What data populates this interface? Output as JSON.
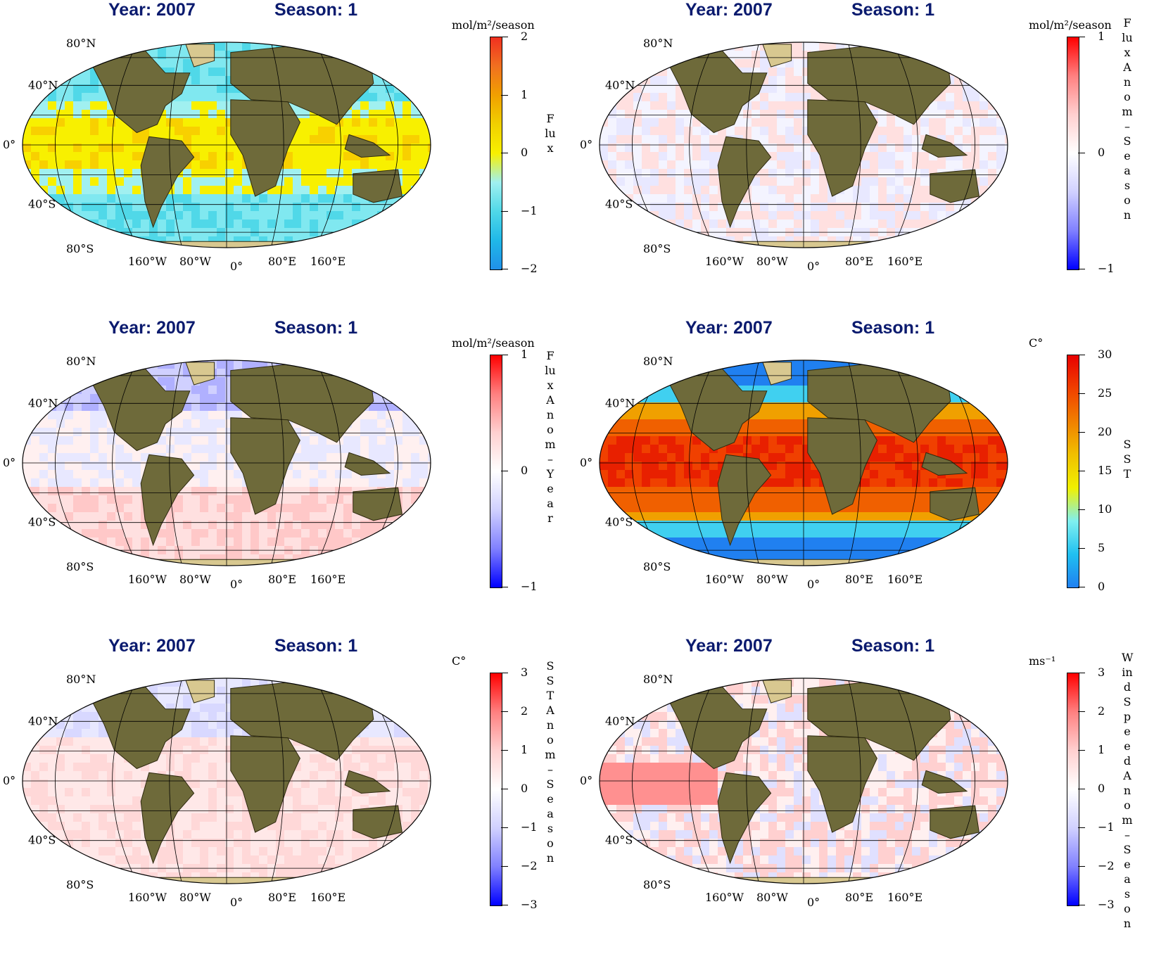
{
  "panels": [
    {
      "year_title": "Year: 2007",
      "season_title": "Season: 1",
      "unit": "mol/m²/season",
      "label": "Flux",
      "ticks": [
        "2",
        "1",
        "0",
        "−1",
        "−2"
      ],
      "colors": [
        "#f03020",
        "#f07020",
        "#f0a000",
        "#f0d000",
        "#f8f000",
        "#a0f0f0",
        "#50d8e8",
        "#20b8e8",
        "#2090e8"
      ],
      "ocean_palette": "flux"
    },
    {
      "year_title": "Year: 2007",
      "season_title": "Season: 1",
      "unit": "mol/m²/season",
      "label": "Flux Anom– Season",
      "ticks": [
        "1",
        "0",
        "−1"
      ],
      "colors": [
        "#ff0000",
        "#ff8080",
        "#ffd0d0",
        "#ffffff",
        "#d0d0ff",
        "#8080ff",
        "#0000ff"
      ],
      "ocean_palette": "anom_light"
    },
    {
      "year_title": "Year: 2007",
      "season_title": "Season: 1",
      "unit": "mol/m²/season",
      "label": "Flux Anom– Year",
      "ticks": [
        "1",
        "0",
        "−1"
      ],
      "colors": [
        "#ff0000",
        "#ff8080",
        "#ffd0d0",
        "#ffffff",
        "#d0d0ff",
        "#8080ff",
        "#0000ff"
      ],
      "ocean_palette": "anom_year"
    },
    {
      "year_title": "Year: 2007",
      "season_title": "Season: 1",
      "unit": "C°",
      "label": "SST",
      "ticks": [
        "30",
        "25",
        "20",
        "15",
        "10",
        "5",
        "0"
      ],
      "colors": [
        "#e80000",
        "#f04000",
        "#f08000",
        "#f0c000",
        "#f0f000",
        "#80f0f0",
        "#20c0f0",
        "#2080f0"
      ],
      "ocean_palette": "sst"
    },
    {
      "year_title": "Year: 2007",
      "season_title": "Season: 1",
      "unit": "C°",
      "label": "SST Anom– Season",
      "ticks": [
        "3",
        "2",
        "1",
        "0",
        "−1",
        "−2",
        "−3"
      ],
      "colors": [
        "#ff0000",
        "#ff8080",
        "#ffd0d0",
        "#ffffff",
        "#d0d0ff",
        "#8080ff",
        "#0000ff"
      ],
      "ocean_palette": "sst_anom"
    },
    {
      "year_title": "Year: 2007",
      "season_title": "Season: 1",
      "unit": "ms⁻¹",
      "label": "Wind Speed Anom– Season",
      "ticks": [
        "3",
        "2",
        "1",
        "0",
        "−1",
        "−2",
        "−3"
      ],
      "colors": [
        "#ff0000",
        "#ff8080",
        "#ffd0d0",
        "#ffffff",
        "#d0d0ff",
        "#8080ff",
        "#0000ff"
      ],
      "ocean_palette": "wind_anom"
    }
  ],
  "lat_labels": [
    "80°N",
    "40°N",
    "0°",
    "40°S",
    "80°S"
  ],
  "lon_labels": [
    "160°W",
    "80°W",
    "0°",
    "80°E",
    "160°E"
  ]
}
